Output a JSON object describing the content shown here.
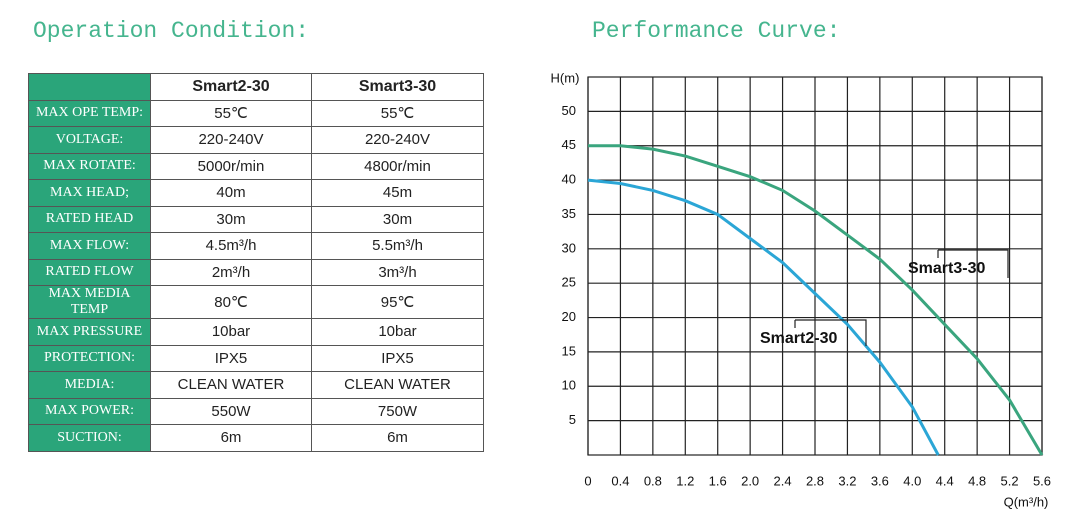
{
  "left_title": "Operation Condition:",
  "table": {
    "columns": [
      "Smart2-30",
      "Smart3-30"
    ],
    "rows": [
      [
        "MAX OPE TEMP:",
        "55℃",
        "55℃"
      ],
      [
        "VOLTAGE:",
        "220-240V",
        "220-240V"
      ],
      [
        "MAX ROTATE:",
        "5000r/min",
        "4800r/min"
      ],
      [
        "MAX HEAD;",
        "40m",
        "45m"
      ],
      [
        "RATED HEAD",
        "30m",
        "30m"
      ],
      [
        "MAX FLOW:",
        "4.5m³/h",
        "5.5m³/h"
      ],
      [
        "RATED FLOW",
        "2m³/h",
        "3m³/h"
      ],
      [
        "MAX MEDIA TEMP",
        "80℃",
        "95℃"
      ],
      [
        "MAX PRESSURE",
        "10bar",
        "10bar"
      ],
      [
        "PROTECTION:",
        "IPX5",
        "IPX5"
      ],
      [
        "MEDIA:",
        "CLEAN WATER",
        "CLEAN WATER"
      ],
      [
        "MAX POWER:",
        "550W",
        "750W"
      ],
      [
        "SUCTION:",
        "6m",
        "6m"
      ]
    ]
  },
  "chart_data": {
    "type": "line",
    "title": "Performance Curve:",
    "y_label": "H(m)",
    "x_label": "Q(m³/h)",
    "xlim": [
      0,
      5.6
    ],
    "xticks": [
      0,
      0.4,
      0.8,
      1.2,
      1.6,
      {
        "value": 2,
        "label": "2.0"
      },
      2.4,
      2.8,
      3.2,
      3.6,
      {
        "value": 4,
        "label": "4.0"
      },
      4.4,
      4.8,
      5.2,
      5.6
    ],
    "ylim": [
      0,
      55
    ],
    "yticks": [
      5,
      10,
      15,
      20,
      25,
      30,
      35,
      40,
      45,
      50
    ],
    "grid": true,
    "series": [
      {
        "name": "Smart2-30",
        "color": "#2ba6d6",
        "x": [
          0,
          0.4,
          0.8,
          1.2,
          1.6,
          2.0,
          2.4,
          2.8,
          3.2,
          3.6,
          4.0,
          4.32
        ],
        "values": [
          40,
          39.5,
          38.5,
          37,
          35,
          31.5,
          28,
          23.5,
          19,
          13.5,
          7,
          0
        ]
      },
      {
        "name": "Smart3-30",
        "color": "#3aa57e",
        "x": [
          0,
          0.4,
          0.8,
          1.2,
          1.6,
          2.0,
          2.4,
          2.8,
          3.2,
          3.6,
          4.0,
          4.4,
          4.8,
          5.2,
          5.6
        ],
        "values": [
          45,
          45,
          44.5,
          43.5,
          42,
          40.5,
          38.5,
          35.5,
          32,
          28.5,
          24,
          19,
          14,
          8,
          0
        ]
      }
    ]
  }
}
